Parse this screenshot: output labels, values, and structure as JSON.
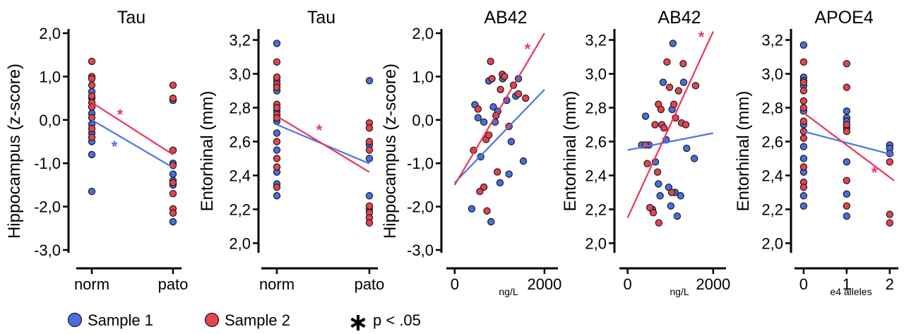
{
  "colors": {
    "sample1": "#4a6ee0",
    "sample2": "#e8424f",
    "line1": "#4a74e8",
    "line2": "#ec3558",
    "star": "#e8338a"
  },
  "legend": {
    "items": [
      {
        "label": "Sample 1",
        "color": "#4a6ee0",
        "icon": "circle-marker"
      },
      {
        "label": "Sample 2",
        "color": "#e8424f",
        "icon": "circle-marker"
      },
      {
        "label": "p < .05",
        "icon": "asterisk"
      }
    ]
  },
  "chart_data": [
    {
      "type": "scatter",
      "title": "Tau",
      "xlabel": "",
      "ylabel": "Hippocampus (z-score)",
      "x_categories": [
        "norm",
        "pato"
      ],
      "ylim": [
        -3.0,
        2.0
      ],
      "yticks": [
        "2,0",
        "1,0",
        "0,0",
        "-1,0",
        "-2,0",
        "-3,0"
      ],
      "ytick_values": [
        2,
        1,
        0,
        -1,
        -2,
        -3
      ],
      "series": [
        {
          "name": "Sample 1",
          "points": [
            [
              0,
              0.65
            ],
            [
              0,
              0.5
            ],
            [
              0,
              0.3
            ],
            [
              0,
              0.15
            ],
            [
              0,
              -0.1
            ],
            [
              0,
              -0.3
            ],
            [
              0,
              -0.5
            ],
            [
              0,
              -0.8
            ],
            [
              0,
              -1.65
            ],
            [
              1,
              0.45
            ],
            [
              1,
              -0.7
            ],
            [
              1,
              -1.0
            ],
            [
              1,
              -1.25
            ],
            [
              1,
              -1.4
            ],
            [
              1,
              -1.5
            ],
            [
              1,
              -2.35
            ]
          ]
        },
        {
          "name": "Sample 2",
          "points": [
            [
              0,
              1.35
            ],
            [
              0,
              1.0
            ],
            [
              0,
              0.95
            ],
            [
              0,
              0.8
            ],
            [
              0,
              0.55
            ],
            [
              0,
              0.4
            ],
            [
              0,
              0.3
            ],
            [
              0,
              0.05
            ],
            [
              0,
              -0.2
            ],
            [
              0,
              -0.4
            ],
            [
              1,
              0.8
            ],
            [
              1,
              0.5
            ],
            [
              1,
              -0.7
            ],
            [
              1,
              -1.05
            ],
            [
              1,
              -1.45
            ],
            [
              1,
              -1.7
            ],
            [
              1,
              -2.05
            ],
            [
              1,
              -2.15
            ]
          ]
        }
      ],
      "trendlines": [
        {
          "series": "Sample 1",
          "from": [
            0,
            0.0
          ],
          "to": [
            1,
            -1.1
          ],
          "significant": true
        },
        {
          "series": "Sample 2",
          "from": [
            0,
            0.4
          ],
          "to": [
            1,
            -0.8
          ],
          "significant": true
        }
      ]
    },
    {
      "type": "scatter",
      "title": "Tau",
      "xlabel": "",
      "ylabel": "Entorhinal (mm)",
      "x_categories": [
        "norm",
        "pato"
      ],
      "ylim": [
        1.96,
        3.24
      ],
      "yticks": [
        "3,2",
        "3,0",
        "2,8",
        "2,6",
        "2,4",
        "2,2",
        "2,0"
      ],
      "ytick_values": [
        3.2,
        3.0,
        2.8,
        2.6,
        2.4,
        2.2,
        2.0
      ],
      "series": [
        {
          "name": "Sample 1",
          "points": [
            [
              0,
              3.18
            ],
            [
              0,
              2.98
            ],
            [
              0,
              2.96
            ],
            [
              0,
              2.9
            ],
            [
              0,
              2.78
            ],
            [
              0,
              2.72
            ],
            [
              0,
              2.65
            ],
            [
              0,
              2.55
            ],
            [
              0,
              2.42
            ],
            [
              0,
              2.35
            ],
            [
              0,
              2.28
            ],
            [
              1,
              2.96
            ],
            [
              1,
              2.58
            ],
            [
              1,
              2.5
            ],
            [
              1,
              2.28
            ],
            [
              1,
              2.2
            ]
          ]
        },
        {
          "name": "Sample 2",
          "points": [
            [
              0,
              3.07
            ],
            [
              0,
              2.98
            ],
            [
              0,
              2.94
            ],
            [
              0,
              2.92
            ],
            [
              0,
              2.82
            ],
            [
              0,
              2.8
            ],
            [
              0,
              2.76
            ],
            [
              0,
              2.74
            ],
            [
              0,
              2.6
            ],
            [
              0,
              2.5
            ],
            [
              0,
              2.45
            ],
            [
              0,
              2.33
            ],
            [
              1,
              2.71
            ],
            [
              1,
              2.68
            ],
            [
              1,
              2.6
            ],
            [
              1,
              2.55
            ],
            [
              1,
              2.22
            ],
            [
              1,
              2.18
            ],
            [
              1,
              2.15
            ],
            [
              1,
              2.12
            ]
          ]
        }
      ],
      "trendlines": [
        {
          "series": "Sample 1",
          "from": [
            0,
            2.7
          ],
          "to": [
            1,
            2.47
          ],
          "significant": false
        },
        {
          "series": "Sample 2",
          "from": [
            0,
            2.75
          ],
          "to": [
            1,
            2.42
          ],
          "significant": true
        }
      ]
    },
    {
      "type": "scatter",
      "title": "AB42",
      "xlabel": "ng/L",
      "ylabel": "Hippocampus (z-score)",
      "xlim": [
        -60,
        2300
      ],
      "xticks": [
        "0",
        "2000"
      ],
      "xtick_values": [
        0,
        2000
      ],
      "ylim": [
        -3.0,
        2.0
      ],
      "yticks": [
        "2,0",
        "1,0",
        "0,0",
        "-1,0",
        "-2,0",
        "-3,0"
      ],
      "ytick_values": [
        2,
        1,
        0,
        -1,
        -2,
        -3
      ],
      "series": [
        {
          "name": "Sample 1",
          "points": [
            [
              380,
              -2.05
            ],
            [
              450,
              0.35
            ],
            [
              520,
              0.05
            ],
            [
              580,
              -0.85
            ],
            [
              650,
              -0.05
            ],
            [
              760,
              0.9
            ],
            [
              810,
              -2.35
            ],
            [
              860,
              0.3
            ],
            [
              900,
              -0.05
            ],
            [
              960,
              0.2
            ],
            [
              1010,
              -1.45
            ],
            [
              1070,
              0.95
            ],
            [
              1160,
              0.45
            ],
            [
              1210,
              -1.25
            ],
            [
              1260,
              -0.5
            ],
            [
              1360,
              0.55
            ],
            [
              1420,
              0.95
            ],
            [
              1530,
              -0.95
            ]
          ]
        },
        {
          "name": "Sample 2",
          "points": [
            [
              420,
              -0.7
            ],
            [
              520,
              0.25
            ],
            [
              560,
              -1.65
            ],
            [
              650,
              -1.55
            ],
            [
              700,
              -0.45
            ],
            [
              720,
              -2.1
            ],
            [
              760,
              -0.35
            ],
            [
              800,
              1.35
            ],
            [
              830,
              0.95
            ],
            [
              920,
              0.1
            ],
            [
              950,
              -1.2
            ],
            [
              1020,
              0.7
            ],
            [
              1060,
              1.05
            ],
            [
              1110,
              1.0
            ],
            [
              1210,
              -0.15
            ],
            [
              1310,
              0.8
            ],
            [
              1420,
              0.6
            ],
            [
              1580,
              0.5
            ]
          ]
        }
      ],
      "trendlines": [
        {
          "series": "Sample 1",
          "from": [
            0,
            -1.45
          ],
          "to": [
            2000,
            0.7
          ],
          "significant": false
        },
        {
          "series": "Sample 2",
          "from": [
            0,
            -1.5
          ],
          "to": [
            2000,
            2.0
          ],
          "significant": true
        }
      ]
    },
    {
      "type": "scatter",
      "title": "AB42",
      "xlabel": "ng/L",
      "ylabel": "Entorhinal (mm)",
      "xlim": [
        -60,
        2300
      ],
      "xticks": [
        "0",
        "2000"
      ],
      "xtick_values": [
        0,
        2000
      ],
      "ylim": [
        1.96,
        3.24
      ],
      "yticks": [
        "3,2",
        "3,0",
        "2,8",
        "2,6",
        "2,4",
        "2,2",
        "2,0"
      ],
      "ytick_values": [
        3.2,
        3.0,
        2.8,
        2.6,
        2.4,
        2.2,
        2.0
      ],
      "series": [
        {
          "name": "Sample 1",
          "points": [
            [
              330,
              2.58
            ],
            [
              420,
              2.75
            ],
            [
              500,
              2.58
            ],
            [
              580,
              2.2
            ],
            [
              650,
              2.48
            ],
            [
              720,
              2.35
            ],
            [
              760,
              2.28
            ],
            [
              830,
              2.95
            ],
            [
              900,
              2.61
            ],
            [
              960,
              2.33
            ],
            [
              1010,
              2.22
            ],
            [
              1040,
              2.79
            ],
            [
              1060,
              3.18
            ],
            [
              1110,
              2.3
            ],
            [
              1160,
              2.16
            ],
            [
              1240,
              2.28
            ],
            [
              1310,
              2.95
            ],
            [
              1380,
              2.56
            ],
            [
              1560,
              2.5
            ]
          ]
        },
        {
          "name": "Sample 2",
          "points": [
            [
              420,
              2.58
            ],
            [
              460,
              2.47
            ],
            [
              520,
              2.21
            ],
            [
              600,
              2.18
            ],
            [
              640,
              2.7
            ],
            [
              700,
              2.42
            ],
            [
              720,
              2.82
            ],
            [
              730,
              2.12
            ],
            [
              780,
              2.79
            ],
            [
              800,
              2.7
            ],
            [
              850,
              2.68
            ],
            [
              920,
              3.07
            ],
            [
              980,
              2.92
            ],
            [
              1030,
              2.3
            ],
            [
              1080,
              2.82
            ],
            [
              1120,
              2.74
            ],
            [
              1190,
              2.9
            ],
            [
              1260,
              2.71
            ],
            [
              1300,
              3.06
            ],
            [
              1360,
              2.7
            ],
            [
              1590,
              2.93
            ]
          ]
        }
      ],
      "trendlines": [
        {
          "series": "Sample 1",
          "from": [
            0,
            2.55
          ],
          "to": [
            2000,
            2.65
          ],
          "significant": false
        },
        {
          "series": "Sample 2",
          "from": [
            0,
            2.15
          ],
          "to": [
            2000,
            3.25
          ],
          "significant": true
        }
      ]
    },
    {
      "type": "scatter",
      "title": "APOE4",
      "xlabel": "e4 alleles",
      "ylabel": "Entorhinal (mm)",
      "xlim": [
        -0.08,
        2.2
      ],
      "xticks": [
        "0",
        "1",
        "2"
      ],
      "xtick_values": [
        0,
        1,
        2
      ],
      "ylim": [
        1.96,
        3.24
      ],
      "yticks": [
        "3,2",
        "3,0",
        "2,8",
        "2,6",
        "2,4",
        "2,2",
        "2,0"
      ],
      "ytick_values": [
        3.2,
        3.0,
        2.8,
        2.6,
        2.4,
        2.2,
        2.0
      ],
      "series": [
        {
          "name": "Sample 1",
          "points": [
            [
              0,
              3.17
            ],
            [
              0,
              2.98
            ],
            [
              0,
              2.96
            ],
            [
              0,
              2.93
            ],
            [
              0,
              2.78
            ],
            [
              0,
              2.7
            ],
            [
              0,
              2.57
            ],
            [
              0,
              2.5
            ],
            [
              0,
              2.42
            ],
            [
              0,
              2.28
            ],
            [
              0,
              2.22
            ],
            [
              1,
              2.78
            ],
            [
              1,
              2.74
            ],
            [
              1,
              2.72
            ],
            [
              1,
              2.7
            ],
            [
              1,
              2.68
            ],
            [
              1,
              2.48
            ],
            [
              1,
              2.29
            ],
            [
              1,
              2.16
            ],
            [
              2,
              2.58
            ],
            [
              2,
              2.56
            ],
            [
              2,
              2.53
            ]
          ]
        },
        {
          "name": "Sample 2",
          "points": [
            [
              0,
              3.07
            ],
            [
              0,
              2.95
            ],
            [
              0,
              2.9
            ],
            [
              0,
              2.84
            ],
            [
              0,
              2.8
            ],
            [
              0,
              2.72
            ],
            [
              0,
              2.66
            ],
            [
              0,
              2.62
            ],
            [
              0,
              2.45
            ],
            [
              0,
              2.36
            ],
            [
              0,
              2.33
            ],
            [
              1,
              3.06
            ],
            [
              1,
              2.92
            ],
            [
              1,
              2.7
            ],
            [
              1,
              2.66
            ],
            [
              1,
              2.37
            ],
            [
              1,
              2.22
            ],
            [
              2,
              2.48
            ],
            [
              2,
              2.17
            ],
            [
              2,
              2.12
            ]
          ]
        }
      ],
      "trendlines": [
        {
          "series": "Sample 1",
          "from": [
            0,
            2.66
          ],
          "to": [
            2.1,
            2.52
          ],
          "significant": false
        },
        {
          "series": "Sample 2",
          "from": [
            0,
            2.77
          ],
          "to": [
            2.1,
            2.37
          ],
          "significant": true
        }
      ]
    }
  ]
}
